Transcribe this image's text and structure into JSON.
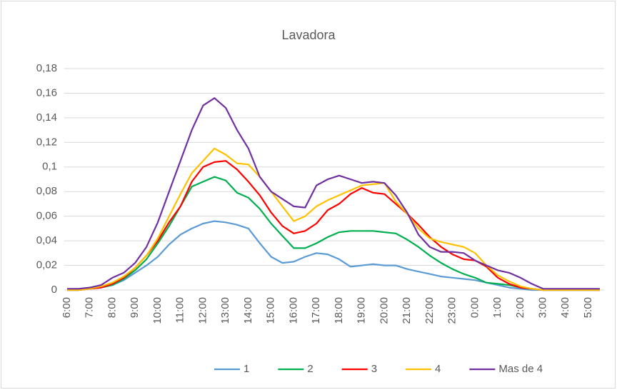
{
  "chart_data": {
    "type": "line",
    "title": "Lavadora",
    "categories": [
      "6:00",
      null,
      "7:00",
      null,
      "8:00",
      null,
      "9:00",
      null,
      "10:00",
      null,
      "11:00",
      null,
      "12:00",
      null,
      "13:00",
      null,
      "14:00",
      null,
      "15:00",
      null,
      "16:00",
      null,
      "17:00",
      null,
      "18:00",
      null,
      "19:00",
      null,
      "20:00",
      null,
      "21:00",
      null,
      "22:00",
      null,
      "23:00",
      null,
      "0:00",
      null,
      "1:00",
      null,
      "2:00",
      null,
      "3:00",
      null,
      "4:00",
      null,
      "5:00",
      null
    ],
    "series": [
      {
        "name": "1",
        "color": "#5b9bd5",
        "values": [
          0,
          0,
          0.001,
          0.002,
          0.004,
          0.008,
          0.014,
          0.02,
          0.027,
          0.037,
          0.045,
          0.05,
          0.054,
          0.056,
          0.055,
          0.053,
          0.05,
          0.038,
          0.027,
          0.022,
          0.023,
          0.027,
          0.03,
          0.029,
          0.025,
          0.019,
          0.02,
          0.021,
          0.02,
          0.02,
          0.017,
          0.015,
          0.013,
          0.011,
          0.01,
          0.009,
          0.008,
          0.006,
          0.004,
          0.002,
          0.001,
          0,
          0,
          0,
          0,
          0,
          0,
          0
        ]
      },
      {
        "name": "2",
        "color": "#00b050",
        "values": [
          0,
          0,
          0.001,
          0.002,
          0.004,
          0.009,
          0.016,
          0.025,
          0.038,
          0.052,
          0.068,
          0.084,
          0.088,
          0.092,
          0.089,
          0.079,
          0.075,
          0.066,
          0.054,
          0.044,
          0.034,
          0.034,
          0.038,
          0.043,
          0.047,
          0.048,
          0.048,
          0.048,
          0.047,
          0.046,
          0.041,
          0.035,
          0.028,
          0.022,
          0.017,
          0.013,
          0.01,
          0.006,
          0.005,
          0.004,
          0.002,
          0.001,
          0,
          0,
          0,
          0,
          0,
          0
        ]
      },
      {
        "name": "3",
        "color": "#ff0000",
        "values": [
          0,
          0,
          0.001,
          0.002,
          0.005,
          0.01,
          0.018,
          0.028,
          0.04,
          0.055,
          0.068,
          0.088,
          0.1,
          0.104,
          0.105,
          0.098,
          0.088,
          0.077,
          0.063,
          0.052,
          0.046,
          0.048,
          0.054,
          0.065,
          0.07,
          0.078,
          0.083,
          0.079,
          0.078,
          0.07,
          0.062,
          0.053,
          0.043,
          0.035,
          0.029,
          0.025,
          0.024,
          0.019,
          0.01,
          0.005,
          0.002,
          0.001,
          0,
          0,
          0,
          0,
          0,
          0
        ]
      },
      {
        "name": "4",
        "color": "#ffc000",
        "values": [
          0,
          0,
          0.001,
          0.003,
          0.006,
          0.011,
          0.018,
          0.028,
          0.042,
          0.06,
          0.078,
          0.095,
          0.105,
          0.115,
          0.11,
          0.103,
          0.102,
          0.092,
          0.08,
          0.068,
          0.056,
          0.06,
          0.068,
          0.073,
          0.077,
          0.081,
          0.085,
          0.086,
          0.087,
          0.072,
          0.062,
          0.05,
          0.042,
          0.039,
          0.037,
          0.035,
          0.03,
          0.02,
          0.012,
          0.007,
          0.003,
          0.001,
          0,
          0,
          0,
          0,
          0,
          0
        ]
      },
      {
        "name": "Mas de 4",
        "color": "#7030a0",
        "values": [
          0.001,
          0.001,
          0.002,
          0.004,
          0.01,
          0.014,
          0.022,
          0.035,
          0.055,
          0.08,
          0.105,
          0.13,
          0.15,
          0.156,
          0.148,
          0.13,
          0.115,
          0.092,
          0.08,
          0.074,
          0.068,
          0.067,
          0.085,
          0.09,
          0.093,
          0.09,
          0.087,
          0.088,
          0.087,
          0.077,
          0.063,
          0.045,
          0.035,
          0.031,
          0.031,
          0.03,
          0.024,
          0.02,
          0.016,
          0.014,
          0.01,
          0.005,
          0.001,
          0.001,
          0.001,
          0.001,
          0.001,
          0.001
        ]
      }
    ],
    "ylim": [
      0,
      0.18
    ],
    "yticks": [
      0,
      {
        "value": 0.02,
        "label": "0,02"
      },
      {
        "value": 0.04,
        "label": "0,04"
      },
      {
        "value": 0.06,
        "label": "0,06"
      },
      {
        "value": 0.08,
        "label": "0,08"
      },
      {
        "value": 0.1,
        "label": "0,1"
      },
      {
        "value": 0.12,
        "label": "0,12"
      },
      {
        "value": 0.14,
        "label": "0,14"
      },
      {
        "value": 0.16,
        "label": "0,16"
      },
      {
        "value": 0.18,
        "label": "0,18"
      }
    ],
    "grid": true,
    "legend": "bottom"
  }
}
